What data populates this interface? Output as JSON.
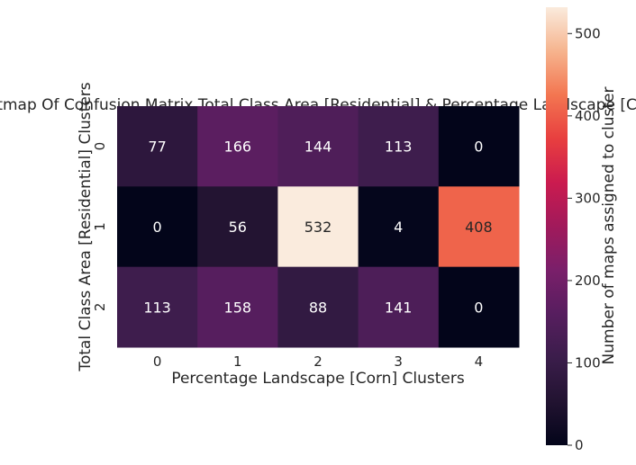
{
  "chart_data": {
    "type": "heatmap",
    "title": "Heatmap Of Confusion Matrix Total Class Area [Residential] & Percentage Landscape [Corn]",
    "xlabel": "Percentage Landscape [Corn] Clusters",
    "ylabel": "Total Class Area [Residential] Clusters",
    "x_categories": [
      "0",
      "1",
      "2",
      "3",
      "4"
    ],
    "y_categories": [
      "0",
      "1",
      "2"
    ],
    "values": [
      [
        77,
        166,
        144,
        113,
        0
      ],
      [
        0,
        56,
        532,
        4,
        408
      ],
      [
        113,
        158,
        88,
        141,
        0
      ]
    ],
    "colorbar": {
      "label": "Number of maps assigned to cluster",
      "min": 0,
      "max": 532,
      "ticks": [
        0,
        100,
        200,
        300,
        400,
        500
      ],
      "colormap": "rocket"
    }
  }
}
